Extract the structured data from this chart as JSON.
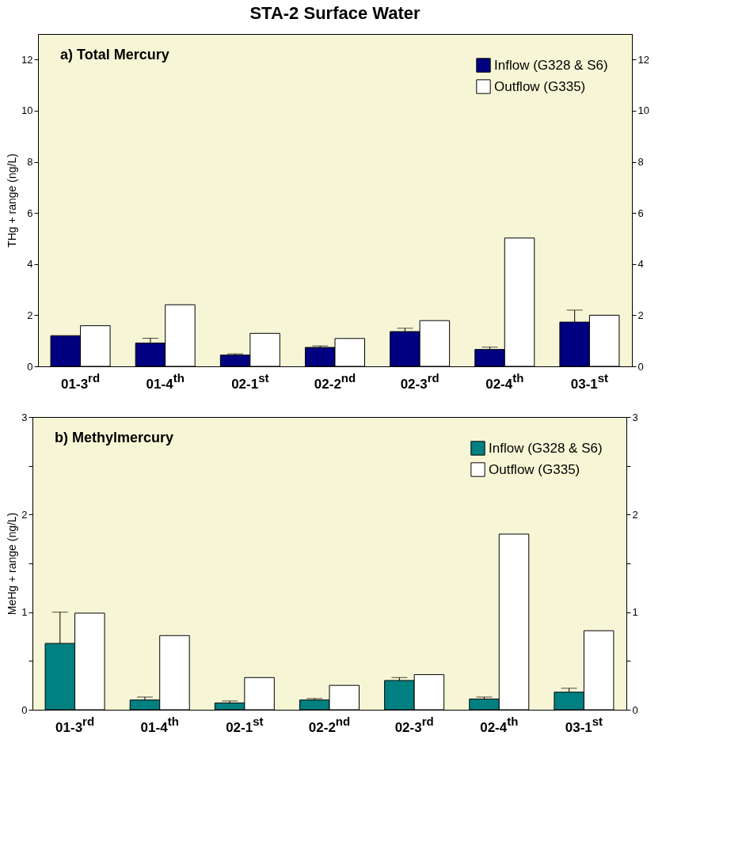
{
  "chart_data": [
    {
      "type": "bar",
      "title": "STA-2 Surface Water",
      "annotations": [
        "a) Total Mercury"
      ],
      "ylabel": "THg + range (ng/L)",
      "categories": [
        "01-3$^{rd}$",
        "01-4$^{th}$",
        "02-1$^{st}$",
        "02-2$^{nd}$",
        "02-3$^{rd}$",
        "02-4$^{th}$",
        "03-1$^{st}$"
      ],
      "series": [
        {
          "name": "Inflow (G328 & S6)",
          "color": "#000080",
          "values": [
            1.2,
            0.91,
            0.44,
            0.74,
            1.36,
            0.66,
            1.73
          ],
          "errors": [
            null,
            [
              0.91,
              1.1
            ],
            [
              0.44,
              0.49
            ],
            [
              0.74,
              0.8
            ],
            [
              1.36,
              1.49
            ],
            [
              0.66,
              0.75
            ],
            [
              1.73,
              2.2
            ]
          ]
        },
        {
          "name": "Outflow (G335)",
          "color": "#ffffff",
          "values": [
            1.59,
            2.41,
            1.29,
            1.09,
            1.79,
            5.02,
            2.0
          ]
        }
      ],
      "ylim": [
        0,
        13
      ],
      "yticks": [
        0,
        2,
        4,
        6,
        8,
        10,
        12
      ],
      "y2lim": [
        0,
        13
      ],
      "y2ticks": [
        0,
        2,
        4,
        6,
        8,
        10,
        12
      ],
      "legend": "top right"
    },
    {
      "type": "bar",
      "annotations": [
        "b)  Methylmercury"
      ],
      "ylabel": "MeHg + range (ng/L)",
      "categories": [
        "01-3$^{rd}$",
        "01-4$^{th}$",
        "02-1$^{st}$",
        "02-2$^{nd}$",
        "02-3$^{rd}$",
        "02-4$^{th}$",
        "03-1$^{st}$"
      ],
      "series": [
        {
          "name": "Inflow (G328 & S6)",
          "color": "#008080",
          "values": [
            0.68,
            0.1,
            0.07,
            0.1,
            0.3,
            0.11,
            0.18
          ],
          "errors": [
            [
              0.68,
              1.0
            ],
            [
              0.1,
              0.13
            ],
            [
              0.07,
              0.09
            ],
            [
              0.1,
              0.115
            ],
            [
              0.3,
              0.33
            ],
            [
              0.11,
              0.13
            ],
            [
              0.18,
              0.22
            ]
          ]
        },
        {
          "name": "Outflow (G335)",
          "color": "#ffffff",
          "values": [
            0.99,
            0.76,
            0.33,
            0.25,
            0.36,
            1.8,
            0.81
          ]
        }
      ],
      "ylim": [
        0,
        3
      ],
      "yticks": [
        0,
        {
          "value": 0.5,
          "label": null
        },
        1,
        {
          "value": 1.5,
          "label": null
        },
        2,
        {
          "value": 2.5,
          "label": null
        },
        3
      ],
      "y2lim": [
        0,
        3
      ],
      "y2ticks": [
        0,
        {
          "value": 0.5,
          "label": null
        },
        1,
        {
          "value": 1.5,
          "label": null
        },
        2,
        {
          "value": 2.5,
          "label": null
        },
        3
      ],
      "legend": "top right"
    }
  ]
}
